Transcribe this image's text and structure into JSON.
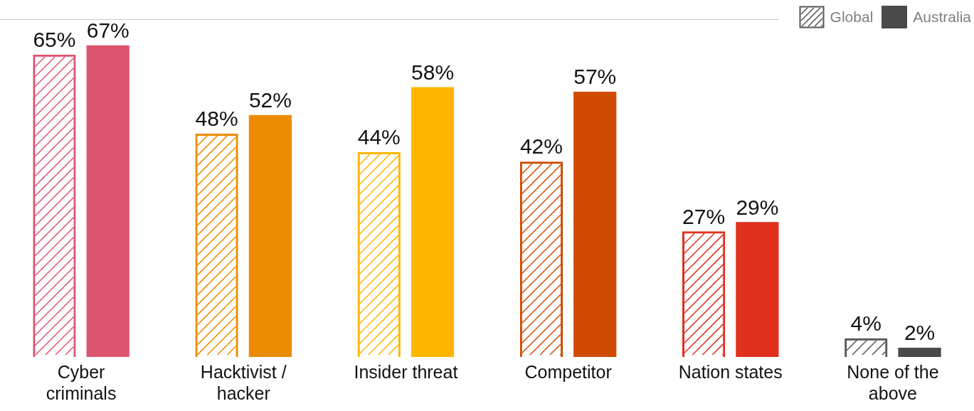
{
  "chart_data": {
    "type": "bar",
    "categories": [
      "Cyber criminals",
      "Hacktivist / hacker",
      "Insider threat",
      "Competitor",
      "Nation states",
      "None of the above"
    ],
    "series": [
      {
        "name": "Global",
        "color": "#555555",
        "colors": [
          "#dc546e",
          "#eb8c00",
          "#ffb600",
          "#d04a02",
          "#e0301e",
          "#555555"
        ],
        "values": [
          65,
          48,
          44,
          42,
          27,
          4
        ],
        "value_labels": [
          "65%",
          "48%",
          "44%",
          "42%",
          "27%",
          "4%"
        ]
      },
      {
        "name": "Australia",
        "color": "#4a4a4a",
        "colors": [
          "#dc546e",
          "#eb8c00",
          "#ffb600",
          "#d04a02",
          "#e0301e",
          "#4a4a4a"
        ],
        "values": [
          67,
          52,
          58,
          57,
          29,
          2
        ],
        "value_labels": [
          "67%",
          "52%",
          "58%",
          "57%",
          "29%",
          "2%"
        ]
      }
    ],
    "legend": "top right",
    "grid": false
  }
}
